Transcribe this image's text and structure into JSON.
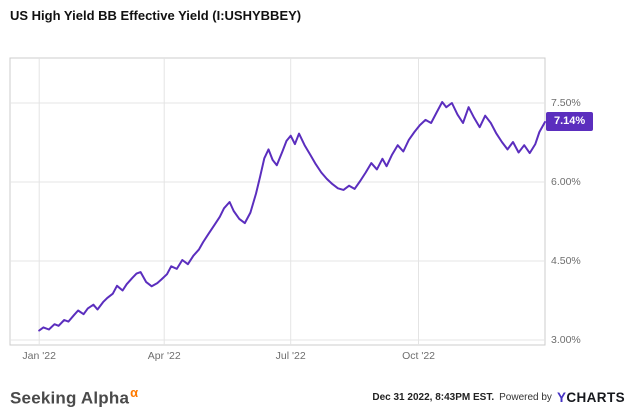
{
  "header": {
    "title": "US High Yield BB Effective Yield (I:USHYBBEY)"
  },
  "chart_data": {
    "type": "line",
    "title": "US High Yield BB Effective Yield (I:USHYBBEY)",
    "series_name": "US High Yield BB Effective Yield",
    "unit": "%",
    "x_unit": "day_of_year_2022",
    "x": [
      1,
      4,
      8,
      12,
      15,
      19,
      22,
      26,
      29,
      33,
      36,
      40,
      43,
      47,
      50,
      54,
      57,
      61,
      64,
      68,
      71,
      74,
      78,
      82,
      86,
      89,
      93,
      96,
      100,
      104,
      108,
      112,
      116,
      119,
      123,
      127,
      131,
      134,
      138,
      141,
      145,
      149,
      153,
      157,
      160,
      163,
      166,
      169,
      172,
      176,
      179,
      182,
      185,
      188,
      192,
      196,
      200,
      204,
      208,
      212,
      216,
      220,
      224,
      228,
      232,
      236,
      240,
      244,
      248,
      251,
      255,
      259,
      263,
      267,
      271,
      275,
      279,
      283,
      287,
      291,
      294,
      298,
      302,
      306,
      310,
      314,
      318,
      322,
      326,
      330,
      334,
      338,
      342,
      346,
      350,
      354,
      358,
      361,
      365
    ],
    "values": [
      3.18,
      3.24,
      3.2,
      3.3,
      3.27,
      3.38,
      3.35,
      3.47,
      3.56,
      3.49,
      3.6,
      3.67,
      3.58,
      3.72,
      3.8,
      3.88,
      4.03,
      3.94,
      4.06,
      4.18,
      4.26,
      4.29,
      4.1,
      4.02,
      4.08,
      4.15,
      4.25,
      4.4,
      4.35,
      4.52,
      4.44,
      4.6,
      4.72,
      4.86,
      5.02,
      5.18,
      5.34,
      5.5,
      5.62,
      5.45,
      5.3,
      5.22,
      5.42,
      5.78,
      6.1,
      6.45,
      6.62,
      6.42,
      6.32,
      6.58,
      6.78,
      6.88,
      6.72,
      6.92,
      6.7,
      6.52,
      6.34,
      6.18,
      6.06,
      5.96,
      5.88,
      5.85,
      5.93,
      5.87,
      6.02,
      6.18,
      6.36,
      6.24,
      6.44,
      6.3,
      6.52,
      6.7,
      6.58,
      6.8,
      6.95,
      7.08,
      7.18,
      7.12,
      7.32,
      7.52,
      7.42,
      7.5,
      7.28,
      7.12,
      7.42,
      7.22,
      7.04,
      7.26,
      7.12,
      6.92,
      6.76,
      6.62,
      6.76,
      6.56,
      6.7,
      6.55,
      6.72,
      6.95,
      7.14
    ],
    "x_domain": [
      -20,
      365
    ],
    "ylim": [
      2.905,
      8.355
    ],
    "yticks": [
      {
        "value": 7.5,
        "label": "7.50%"
      },
      {
        "value": 6.0,
        "label": "6.00%"
      },
      {
        "value": 4.5,
        "label": "4.50%"
      },
      {
        "value": 3.0,
        "label": "3.00%"
      }
    ],
    "xticks": [
      {
        "day": 1,
        "label": "Jan '22"
      },
      {
        "day": 91,
        "label": "Apr '22"
      },
      {
        "day": 182,
        "label": "Jul '22"
      },
      {
        "day": 274,
        "label": "Oct '22"
      }
    ],
    "grid": true,
    "legend_position": "none",
    "line_color": "#5b2ebe",
    "grid_color": "#e4e4e4",
    "border_color": "#cccccc",
    "last_value": 7.14,
    "last_label": "7.14%"
  },
  "footer": {
    "brand": "Seeking Alpha",
    "brand_alpha": "α",
    "timestamp": "Dec 31 2022, 8:43PM EST.",
    "powered_by": "Powered by",
    "ycharts_y": "Y",
    "ycharts_rest": "CHARTS"
  },
  "colors": {
    "accent_purple": "#5b2ebe",
    "alpha_orange": "#ff7a00",
    "ycharts_y_blue": "#4431c4",
    "text_dark": "#111111",
    "tick_gray": "#6e6e6e"
  }
}
